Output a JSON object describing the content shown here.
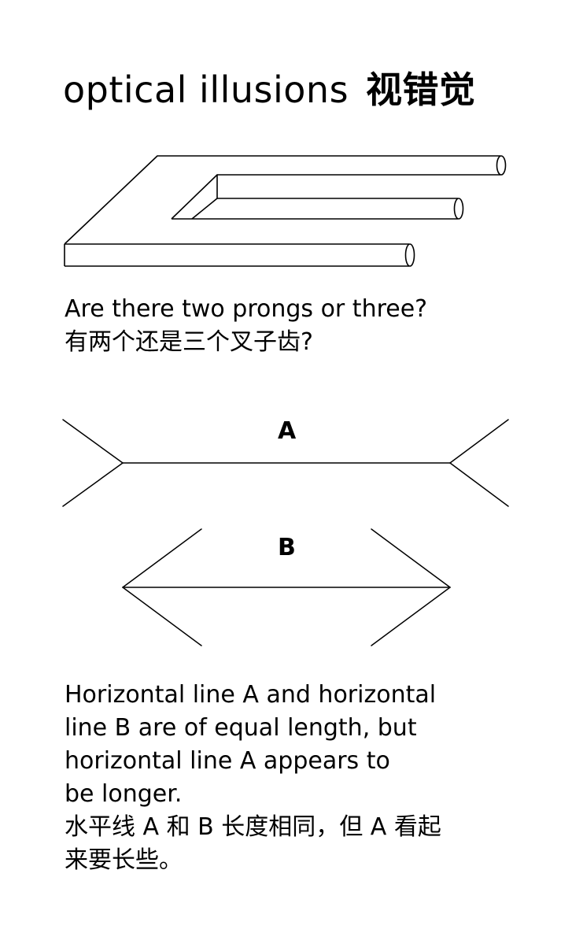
{
  "title": {
    "en": "optical illusions",
    "zh": "视错觉"
  },
  "prongs": {
    "caption_en": "Are there two prongs or three?",
    "caption_zh": "有两个还是三个叉子齿?"
  },
  "lines": {
    "label_a": "A",
    "label_b": "B",
    "caption_en_lines": [
      "Horizontal line A and horizontal",
      "line B are of equal length, but",
      "horizontal line A appears to",
      "be longer."
    ],
    "caption_zh_lines": [
      "水平线 A 和 B 长度相同，但 A 看起",
      "来要长些。"
    ]
  }
}
